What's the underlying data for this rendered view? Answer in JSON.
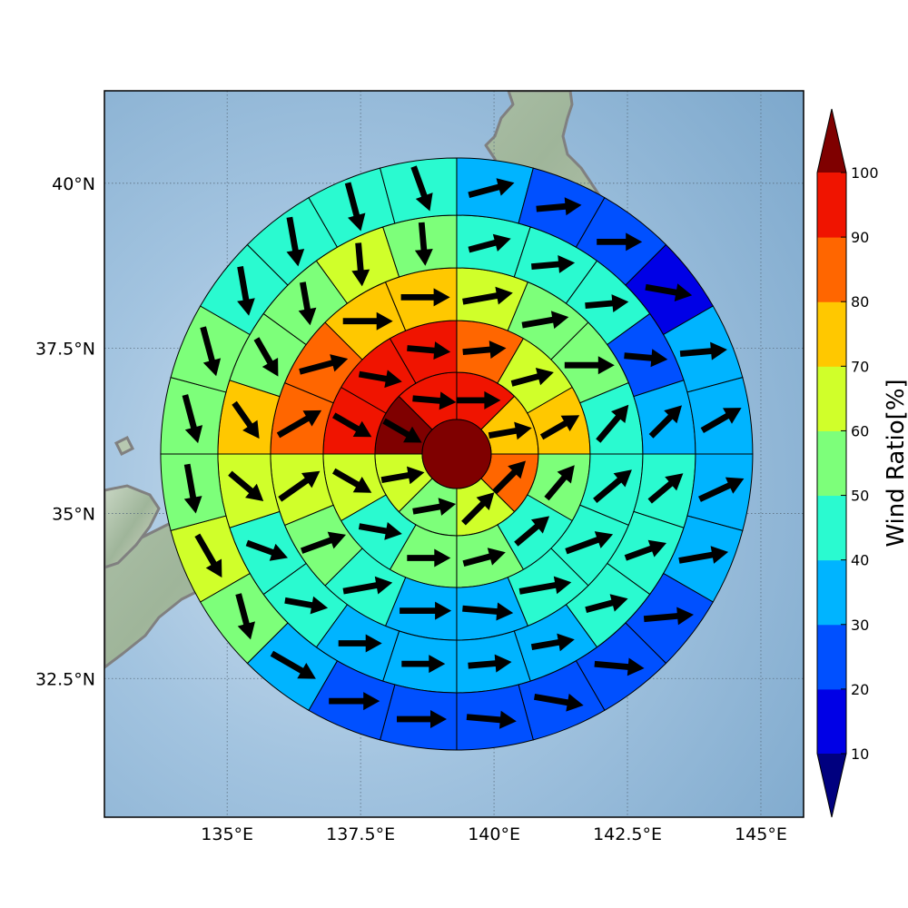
{
  "map": {
    "lon_range": [
      132.7,
      145.8
    ],
    "lat_range": [
      30.4,
      41.4
    ],
    "x_ticks": [
      {
        "value": 135,
        "label": "135°E"
      },
      {
        "value": 137.5,
        "label": "137.5°E"
      },
      {
        "value": 140,
        "label": "140°E"
      },
      {
        "value": 142.5,
        "label": "142.5°E"
      },
      {
        "value": 145,
        "label": "145°E"
      }
    ],
    "y_ticks": [
      {
        "value": 40,
        "label": "40°N"
      },
      {
        "value": 37.5,
        "label": "37.5°N"
      },
      {
        "value": 35,
        "label": "35°N"
      },
      {
        "value": 32.5,
        "label": "32.5°N"
      }
    ],
    "grid": "dotted",
    "center": {
      "lon": 139.3,
      "lat": 35.9
    },
    "center_ratio": 100,
    "rings": [
      {
        "sectors": 8,
        "ratios": [
          90,
          70,
          85,
          65,
          55,
          65,
          100,
          90
        ],
        "winds": [
          90,
          80,
          45,
          45,
          80,
          80,
          120,
          95
        ]
      },
      {
        "sectors": 12,
        "ratios": [
          80,
          60,
          70,
          55,
          45,
          55,
          50,
          45,
          60,
          90,
          90,
          90
        ],
        "winds": [
          85,
          75,
          60,
          40,
          50,
          75,
          90,
          100,
          120,
          120,
          100,
          95
        ]
      },
      {
        "sectors": 16,
        "ratios": [
          65,
          55,
          50,
          40,
          40,
          45,
          40,
          35,
          35,
          40,
          50,
          60,
          80,
          85,
          75,
          70
        ],
        "winds": [
          80,
          80,
          90,
          40,
          50,
          70,
          80,
          95,
          90,
          80,
          70,
          55,
          60,
          75,
          90,
          90
        ],
        "lens": [
          56,
          52,
          55,
          52,
          53,
          55,
          58,
          56,
          57,
          55,
          52,
          54,
          55,
          55,
          55,
          54
        ]
      },
      {
        "sectors": 20,
        "ratios": [
          45,
          45,
          40,
          25,
          35,
          40,
          40,
          40,
          35,
          30,
          30,
          30,
          40,
          45,
          60,
          70,
          55,
          55,
          60,
          55
        ],
        "winds": [
          75,
          85,
          85,
          95,
          45,
          50,
          70,
          75,
          80,
          85,
          90,
          90,
          100,
          110,
          130,
          145,
          150,
          170,
          175,
          175
        ]
      },
      {
        "sectors": 24,
        "ratios": [
          35,
          20,
          20,
          10,
          35,
          35,
          35,
          30,
          25,
          25,
          20,
          20,
          20,
          20,
          35,
          55,
          60,
          50,
          55,
          55,
          45,
          45,
          45,
          40
        ],
        "winds": [
          75,
          85,
          90,
          100,
          85,
          60,
          65,
          80,
          85,
          95,
          100,
          95,
          90,
          90,
          120,
          165,
          150,
          170,
          165,
          165,
          170,
          170,
          165,
          160
        ],
        "lens": [
          52,
          50,
          50,
          52,
          52,
          50,
          54,
          55,
          55,
          55,
          55,
          55,
          55,
          56,
          56,
          52,
          54,
          55,
          55,
          56,
          55,
          55,
          55,
          52
        ]
      }
    ]
  },
  "colorbar": {
    "title": "Wind Ratio[%]",
    "levels": [
      10,
      20,
      30,
      40,
      50,
      60,
      70,
      80,
      90,
      100
    ],
    "tick_labels": [
      "10",
      "20",
      "30",
      "40",
      "50",
      "60",
      "70",
      "80",
      "90",
      "100"
    ],
    "under_color": "#00007f",
    "over_color": "#7f0000",
    "colors": [
      "#0000e6",
      "#0050ff",
      "#00b4ff",
      "#2afad0",
      "#7dff7a",
      "#d0ff2a",
      "#ffc800",
      "#ff6600",
      "#f01400"
    ]
  }
}
